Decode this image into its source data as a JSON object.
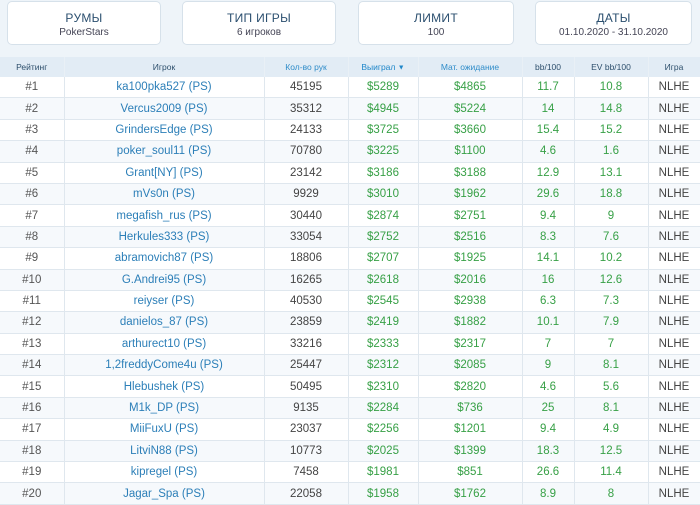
{
  "filters": [
    {
      "title": "РУМЫ",
      "value": "PokerStars"
    },
    {
      "title": "ТИП ИГРЫ",
      "value": "6 игроков"
    },
    {
      "title": "ЛИМИТ",
      "value": "100"
    },
    {
      "title": "ДАТЫ",
      "value": "01.10.2020 - 31.10.2020"
    }
  ],
  "table": {
    "headers": [
      "Рейтинг",
      "Игрок",
      "Кол-во рук",
      "Выиграл",
      "Мат. ожидание",
      "bb/100",
      "EV bb/100",
      "Игра"
    ],
    "sort_indicator": "▼",
    "rows": [
      [
        "#1",
        "ka100pka527 (PS)",
        "45195",
        "$5289",
        "$4865",
        "11.7",
        "10.8",
        "NLHE"
      ],
      [
        "#2",
        "Vercus2009 (PS)",
        "35312",
        "$4945",
        "$5224",
        "14",
        "14.8",
        "NLHE"
      ],
      [
        "#3",
        "GrindersEdge (PS)",
        "24133",
        "$3725",
        "$3660",
        "15.4",
        "15.2",
        "NLHE"
      ],
      [
        "#4",
        "poker_soul11 (PS)",
        "70780",
        "$3225",
        "$1100",
        "4.6",
        "1.6",
        "NLHE"
      ],
      [
        "#5",
        "Grant[NY] (PS)",
        "23142",
        "$3186",
        "$3188",
        "12.9",
        "13.1",
        "NLHE"
      ],
      [
        "#6",
        "mVs0n (PS)",
        "9929",
        "$3010",
        "$1962",
        "29.6",
        "18.8",
        "NLHE"
      ],
      [
        "#7",
        "megafish_rus (PS)",
        "30440",
        "$2874",
        "$2751",
        "9.4",
        "9",
        "NLHE"
      ],
      [
        "#8",
        "Herkules333 (PS)",
        "33054",
        "$2752",
        "$2516",
        "8.3",
        "7.6",
        "NLHE"
      ],
      [
        "#9",
        "abramovich87 (PS)",
        "18806",
        "$2707",
        "$1925",
        "14.1",
        "10.2",
        "NLHE"
      ],
      [
        "#10",
        "G.Andrei95 (PS)",
        "16265",
        "$2618",
        "$2016",
        "16",
        "12.6",
        "NLHE"
      ],
      [
        "#11",
        "reiyser (PS)",
        "40530",
        "$2545",
        "$2938",
        "6.3",
        "7.3",
        "NLHE"
      ],
      [
        "#12",
        "danielos_87 (PS)",
        "23859",
        "$2419",
        "$1882",
        "10.1",
        "7.9",
        "NLHE"
      ],
      [
        "#13",
        "arthurect10 (PS)",
        "33216",
        "$2333",
        "$2317",
        "7",
        "7",
        "NLHE"
      ],
      [
        "#14",
        "1,2freddyCome4u (PS)",
        "25447",
        "$2312",
        "$2085",
        "9",
        "8.1",
        "NLHE"
      ],
      [
        "#15",
        "Hlebushek (PS)",
        "50495",
        "$2310",
        "$2820",
        "4.6",
        "5.6",
        "NLHE"
      ],
      [
        "#16",
        "M1k_DP (PS)",
        "9135",
        "$2284",
        "$736",
        "25",
        "8.1",
        "NLHE"
      ],
      [
        "#17",
        "MiiFuxU (PS)",
        "23037",
        "$2256",
        "$1201",
        "9.4",
        "4.9",
        "NLHE"
      ],
      [
        "#18",
        "LitviN88 (PS)",
        "10773",
        "$2025",
        "$1399",
        "18.3",
        "12.5",
        "NLHE"
      ],
      [
        "#19",
        "kipregel (PS)",
        "7458",
        "$1981",
        "$851",
        "26.6",
        "11.4",
        "NLHE"
      ],
      [
        "#20",
        "Jagar_Spa (PS)",
        "22058",
        "$1958",
        "$1762",
        "8.9",
        "8",
        "NLHE"
      ]
    ]
  }
}
